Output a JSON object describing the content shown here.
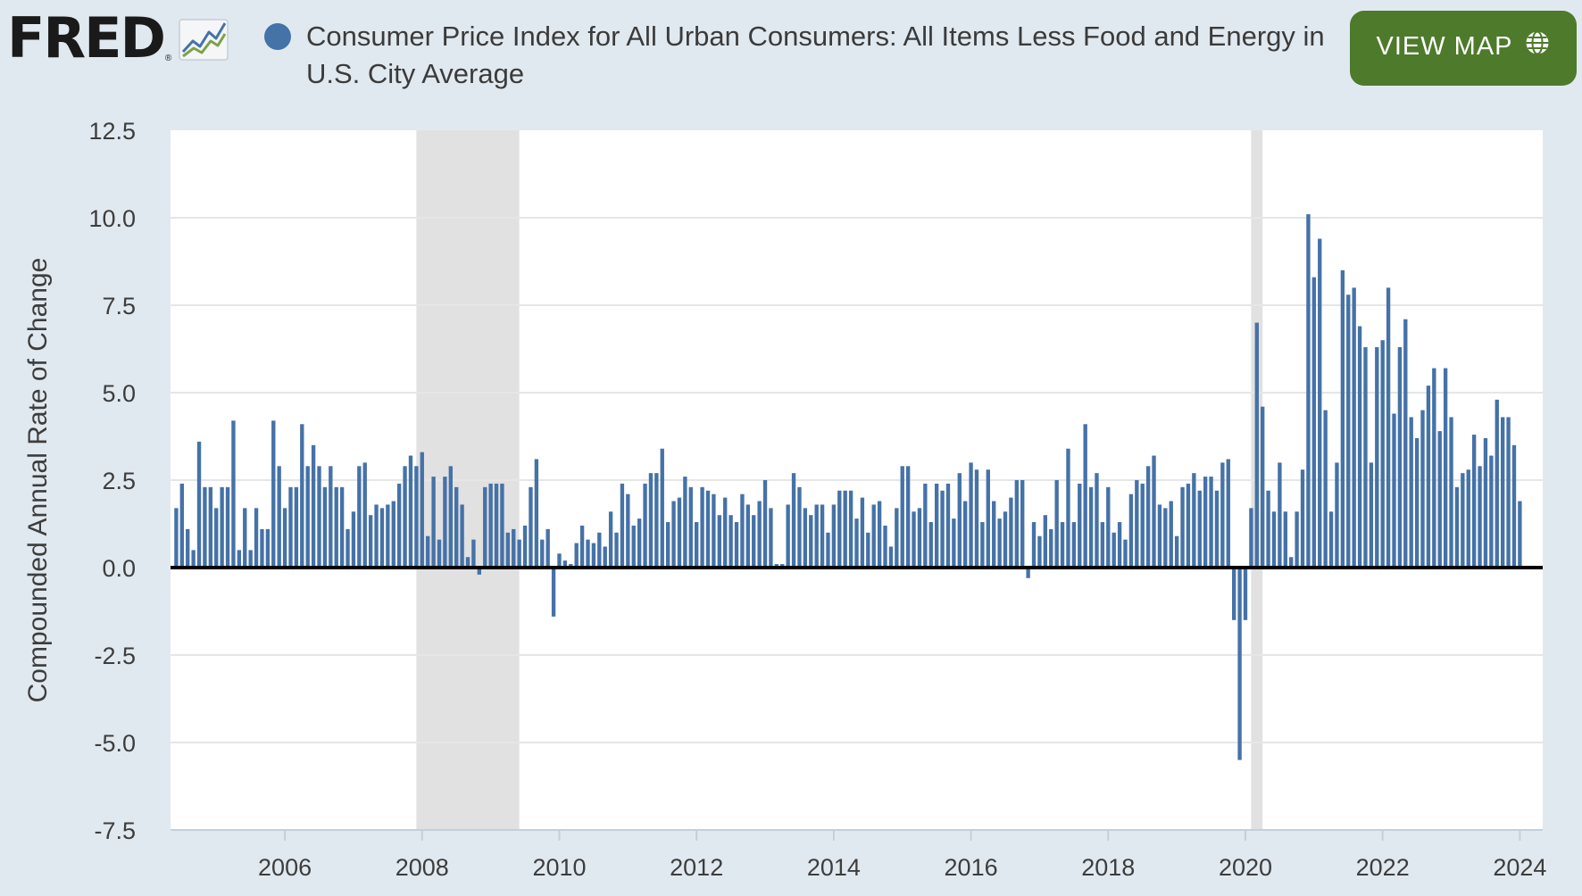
{
  "header": {
    "logo_text": "FRED",
    "logo_reg": "®",
    "series_title": "Consumer Price Index for All Urban Consumers: All Items Less Food and Energy in U.S. City Average",
    "view_map_label": "VIEW MAP"
  },
  "icons": {
    "logo_mark": "fred-line-graph-icon",
    "series_marker": "series-dot-icon",
    "view_map": "globe-icon"
  },
  "colors": {
    "page_background": "#e1e9f0",
    "plot_background": "#ffffff",
    "bar": "#4572a7",
    "zero_line": "#000000",
    "recession_shade": "#e1e1e1",
    "gridline": "#e6e6e6",
    "button": "#4e7a2b",
    "title_text": "#3b3b3b",
    "axis_text": "#3d3d3d"
  },
  "chart_data": {
    "type": "bar",
    "title": "Consumer Price Index for All Urban Consumers: All Items Less Food and Energy in U.S. City Average",
    "xlabel": "",
    "ylabel": "Compounded Annual Rate of Change",
    "ylim": [
      -7.5,
      12.5
    ],
    "xlim": [
      "2004-05",
      "2024-05"
    ],
    "y_ticks": [
      "12.5",
      "10.0",
      "7.5",
      "5.0",
      "2.5",
      "0.0",
      "-2.5",
      "-5.0",
      "-7.5"
    ],
    "x_ticks": [
      "2006",
      "2008",
      "2010",
      "2012",
      "2014",
      "2016",
      "2018",
      "2020",
      "2022",
      "2024"
    ],
    "grid": true,
    "legend": "none",
    "start": "2004-06",
    "frequency": "monthly",
    "recessions": [
      {
        "start": "2007-12",
        "end": "2009-06"
      },
      {
        "start": "2020-02",
        "end": "2020-04"
      }
    ],
    "series": [
      {
        "values": [
          1.7,
          2.4,
          1.1,
          0.5,
          3.6,
          2.3,
          2.3,
          1.7,
          2.3,
          2.3,
          4.2,
          0.5,
          1.7,
          0.5,
          1.7,
          1.1,
          1.1,
          4.2,
          2.9,
          1.7,
          2.3,
          2.3,
          4.1,
          2.9,
          3.5,
          2.9,
          2.3,
          2.9,
          2.3,
          2.3,
          1.1,
          1.6,
          2.9,
          3.0,
          1.5,
          1.8,
          1.7,
          1.8,
          1.9,
          2.4,
          2.9,
          3.2,
          2.9,
          3.3,
          0.9,
          2.6,
          0.8,
          2.6,
          2.9,
          2.3,
          1.8,
          0.3,
          0.8,
          -0.2,
          2.3,
          2.4,
          2.4,
          2.4,
          1.0,
          1.1,
          0.8,
          1.2,
          2.3,
          3.1,
          0.8,
          1.1,
          -1.4,
          0.4,
          0.2,
          0.1,
          0.7,
          1.2,
          0.8,
          0.7,
          1.0,
          0.6,
          1.6,
          1.0,
          2.4,
          2.1,
          1.2,
          1.4,
          2.4,
          2.7,
          2.7,
          3.4,
          1.3,
          1.9,
          2.0,
          2.6,
          2.3,
          1.3,
          2.3,
          2.2,
          2.1,
          1.5,
          2.0,
          1.5,
          1.3,
          2.1,
          1.8,
          1.5,
          1.9,
          2.5,
          1.7,
          0.1,
          0.1,
          1.8,
          2.7,
          2.3,
          1.7,
          1.5,
          1.8,
          1.8,
          1.0,
          1.8,
          2.2,
          2.2,
          2.2,
          1.4,
          2.0,
          1.0,
          1.8,
          1.9,
          1.2,
          0.6,
          1.7,
          2.9,
          2.9,
          1.6,
          1.7,
          2.4,
          1.3,
          2.4,
          2.2,
          2.4,
          1.4,
          2.7,
          1.9,
          3.0,
          2.8,
          1.3,
          2.8,
          1.9,
          1.4,
          1.6,
          2.0,
          2.5,
          2.5,
          -0.3,
          1.3,
          0.9,
          1.5,
          1.1,
          2.5,
          1.3,
          3.4,
          1.3,
          2.4,
          4.1,
          2.3,
          2.7,
          1.3,
          2.3,
          1.0,
          1.3,
          0.8,
          2.1,
          2.5,
          2.4,
          2.9,
          3.2,
          1.8,
          1.7,
          1.9,
          0.9,
          2.3,
          2.4,
          2.7,
          2.2,
          2.6,
          2.6,
          2.2,
          3.0,
          3.1,
          -1.5,
          -5.5,
          -1.5,
          1.7,
          7.0,
          4.6,
          2.2,
          1.6,
          3.0,
          1.6,
          0.3,
          1.6,
          2.8,
          10.1,
          8.3,
          9.4,
          4.5,
          1.6,
          3.0,
          8.5,
          7.8,
          8.0,
          6.9,
          6.3,
          3.0,
          6.3,
          6.5,
          8.0,
          4.4,
          6.3,
          7.1,
          4.3,
          3.7,
          4.5,
          5.2,
          5.7,
          3.9,
          5.7,
          4.3,
          2.3,
          2.7,
          2.8,
          3.8,
          2.9,
          3.7,
          3.2,
          4.8,
          4.3,
          4.3,
          3.5,
          1.9
        ]
      }
    ]
  }
}
